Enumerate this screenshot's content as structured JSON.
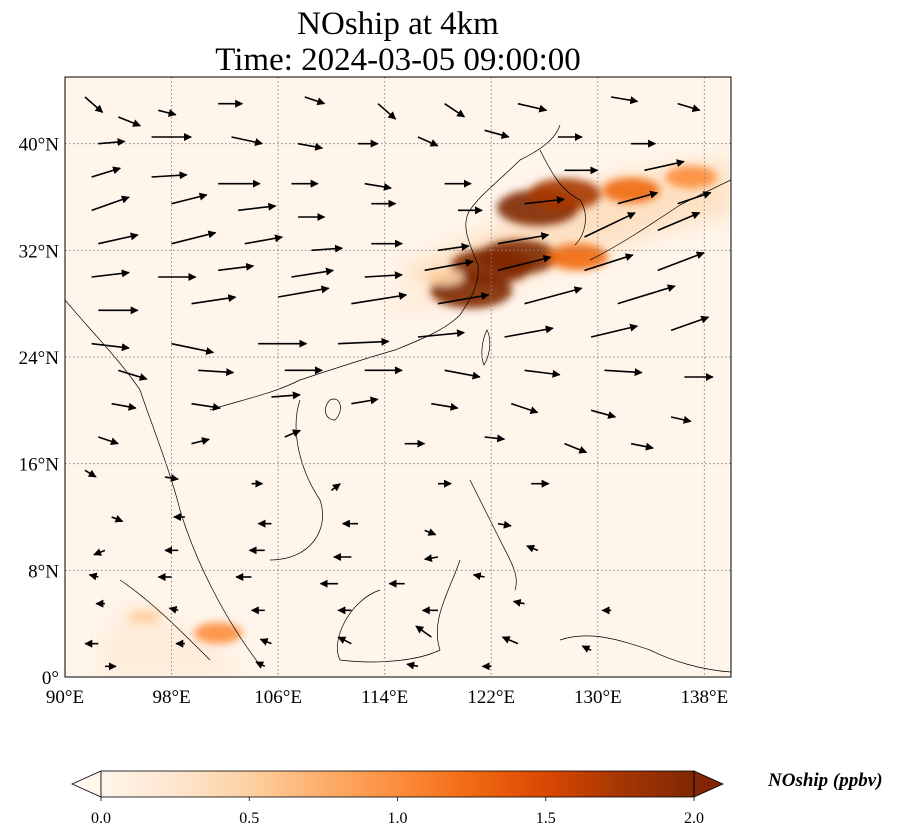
{
  "title": {
    "line1": "NOship at 4km",
    "line2": "Time: 2024-03-05 09:00:00"
  },
  "map": {
    "lon_range": [
      90,
      140
    ],
    "lat_range": [
      0,
      45
    ],
    "lon_ticks": [
      {
        "value": 90,
        "label": "90°E"
      },
      {
        "value": 98,
        "label": "98°E"
      },
      {
        "value": 106,
        "label": "106°E"
      },
      {
        "value": 114,
        "label": "114°E"
      },
      {
        "value": 122,
        "label": "122°E"
      },
      {
        "value": 130,
        "label": "130°E"
      },
      {
        "value": 138,
        "label": "138°E"
      }
    ],
    "lat_ticks": [
      {
        "value": 0,
        "label": "0°"
      },
      {
        "value": 8,
        "label": "8°N"
      },
      {
        "value": 16,
        "label": "16°N"
      },
      {
        "value": 24,
        "label": "24°N"
      },
      {
        "value": 32,
        "label": "32°N"
      },
      {
        "value": 40,
        "label": "40°N"
      }
    ],
    "gridlines": "dotted",
    "background_color": "#fff5eb"
  },
  "colorbar": {
    "label": "NOship (ppbv)",
    "min": 0.0,
    "max": 2.0,
    "extend": "both",
    "colormap": "OrRd",
    "ticks": [
      {
        "value": 0.0,
        "label": "0.0"
      },
      {
        "value": 0.5,
        "label": "0.5"
      },
      {
        "value": 1.0,
        "label": "1.0"
      },
      {
        "value": 1.5,
        "label": "1.5"
      },
      {
        "value": 2.0,
        "label": "2.0"
      }
    ],
    "colors": [
      "#fff5eb",
      "#fee6ce",
      "#fdd0a2",
      "#fdae6b",
      "#fd8d3c",
      "#f16913",
      "#d94801",
      "#a63603",
      "#7f2704"
    ]
  },
  "concentration_hotspots": [
    {
      "lon": 125.5,
      "lat": 35.2,
      "value": 2.0
    },
    {
      "lon": 127.5,
      "lat": 36.2,
      "value": 1.7
    },
    {
      "lon": 124.0,
      "lat": 31.5,
      "value": 1.9
    },
    {
      "lon": 122.0,
      "lat": 30.8,
      "value": 2.0
    },
    {
      "lon": 120.5,
      "lat": 29.0,
      "value": 2.0
    },
    {
      "lon": 128.5,
      "lat": 31.5,
      "value": 1.3
    },
    {
      "lon": 132.5,
      "lat": 36.5,
      "value": 1.2
    },
    {
      "lon": 137.0,
      "lat": 37.5,
      "value": 1.0
    },
    {
      "lon": 118.5,
      "lat": 30.0,
      "value": 0.6
    },
    {
      "lon": 101.5,
      "lat": 3.3,
      "value": 0.9
    },
    {
      "lon": 96.0,
      "lat": 4.5,
      "value": 0.4
    }
  ],
  "wind_arrows": [
    {
      "lon": 91.5,
      "lat": 43.5,
      "u": 1.6,
      "v": -1.4
    },
    {
      "lon": 94.0,
      "lat": 42.0,
      "u": 2.0,
      "v": -0.8
    },
    {
      "lon": 97.0,
      "lat": 42.5,
      "u": 1.6,
      "v": -0.4
    },
    {
      "lon": 101.5,
      "lat": 43.0,
      "u": 2.2,
      "v": 0.0
    },
    {
      "lon": 108.0,
      "lat": 43.5,
      "u": 1.8,
      "v": -0.6
    },
    {
      "lon": 113.5,
      "lat": 43.0,
      "u": 1.6,
      "v": -1.4
    },
    {
      "lon": 118.5,
      "lat": 43.0,
      "u": 1.8,
      "v": -1.2
    },
    {
      "lon": 124.0,
      "lat": 43.0,
      "u": 2.6,
      "v": -0.6
    },
    {
      "lon": 131.0,
      "lat": 43.5,
      "u": 2.4,
      "v": -0.4
    },
    {
      "lon": 136.0,
      "lat": 43.0,
      "u": 2.0,
      "v": -0.6
    },
    {
      "lon": 92.5,
      "lat": 40.0,
      "u": 2.4,
      "v": 0.2
    },
    {
      "lon": 96.5,
      "lat": 40.5,
      "u": 3.6,
      "v": 0.0
    },
    {
      "lon": 102.5,
      "lat": 40.5,
      "u": 2.8,
      "v": -0.6
    },
    {
      "lon": 107.5,
      "lat": 40.0,
      "u": 2.2,
      "v": -0.4
    },
    {
      "lon": 112.0,
      "lat": 40.0,
      "u": 1.8,
      "v": 0.0
    },
    {
      "lon": 116.5,
      "lat": 40.5,
      "u": 1.8,
      "v": -0.8
    },
    {
      "lon": 121.5,
      "lat": 41.0,
      "u": 2.2,
      "v": -0.6
    },
    {
      "lon": 127.0,
      "lat": 40.5,
      "u": 2.2,
      "v": 0.0
    },
    {
      "lon": 132.5,
      "lat": 40.0,
      "u": 2.2,
      "v": 0.0
    },
    {
      "lon": 92.0,
      "lat": 37.5,
      "u": 2.6,
      "v": 0.8
    },
    {
      "lon": 96.5,
      "lat": 37.5,
      "u": 3.2,
      "v": 0.2
    },
    {
      "lon": 101.5,
      "lat": 37.0,
      "u": 3.8,
      "v": 0.0
    },
    {
      "lon": 107.0,
      "lat": 37.0,
      "u": 2.4,
      "v": 0.0
    },
    {
      "lon": 112.5,
      "lat": 37.0,
      "u": 2.4,
      "v": -0.4
    },
    {
      "lon": 118.5,
      "lat": 37.0,
      "u": 2.4,
      "v": 0.0
    },
    {
      "lon": 127.5,
      "lat": 38.0,
      "u": 3.0,
      "v": 0.0
    },
    {
      "lon": 133.5,
      "lat": 38.0,
      "u": 3.6,
      "v": 0.8
    },
    {
      "lon": 92.0,
      "lat": 35.0,
      "u": 3.4,
      "v": 1.2
    },
    {
      "lon": 98.0,
      "lat": 35.5,
      "u": 3.2,
      "v": 0.8
    },
    {
      "lon": 103.0,
      "lat": 35.0,
      "u": 3.4,
      "v": 0.4
    },
    {
      "lon": 107.5,
      "lat": 34.5,
      "u": 2.4,
      "v": 0.0
    },
    {
      "lon": 113.0,
      "lat": 35.5,
      "u": 2.2,
      "v": 0.0
    },
    {
      "lon": 119.5,
      "lat": 35.0,
      "u": 2.2,
      "v": 0.0
    },
    {
      "lon": 124.5,
      "lat": 35.5,
      "u": 3.6,
      "v": 0.4
    },
    {
      "lon": 131.5,
      "lat": 35.5,
      "u": 3.6,
      "v": 1.0
    },
    {
      "lon": 136.0,
      "lat": 35.5,
      "u": 3.0,
      "v": 1.0
    },
    {
      "lon": 92.5,
      "lat": 32.5,
      "u": 3.6,
      "v": 0.8
    },
    {
      "lon": 98.0,
      "lat": 32.5,
      "u": 4.0,
      "v": 1.0
    },
    {
      "lon": 103.5,
      "lat": 32.5,
      "u": 3.4,
      "v": 0.6
    },
    {
      "lon": 108.5,
      "lat": 32.0,
      "u": 2.8,
      "v": 0.2
    },
    {
      "lon": 113.0,
      "lat": 32.5,
      "u": 2.8,
      "v": 0.0
    },
    {
      "lon": 118.0,
      "lat": 32.0,
      "u": 2.8,
      "v": 0.4
    },
    {
      "lon": 122.5,
      "lat": 32.5,
      "u": 4.6,
      "v": 0.8
    },
    {
      "lon": 129.0,
      "lat": 33.0,
      "u": 4.6,
      "v": 2.2
    },
    {
      "lon": 134.5,
      "lat": 33.5,
      "u": 3.8,
      "v": 1.6
    },
    {
      "lon": 92.0,
      "lat": 30.0,
      "u": 3.4,
      "v": 0.4
    },
    {
      "lon": 97.0,
      "lat": 30.0,
      "u": 3.4,
      "v": 0.0
    },
    {
      "lon": 101.5,
      "lat": 30.5,
      "u": 3.2,
      "v": 0.4
    },
    {
      "lon": 107.0,
      "lat": 30.0,
      "u": 3.8,
      "v": 0.6
    },
    {
      "lon": 112.5,
      "lat": 30.0,
      "u": 3.4,
      "v": 0.2
    },
    {
      "lon": 117.0,
      "lat": 30.5,
      "u": 4.4,
      "v": 0.8
    },
    {
      "lon": 122.5,
      "lat": 30.5,
      "u": 4.8,
      "v": 1.2
    },
    {
      "lon": 129.0,
      "lat": 30.5,
      "u": 4.4,
      "v": 1.4
    },
    {
      "lon": 134.5,
      "lat": 30.5,
      "u": 4.2,
      "v": 1.6
    },
    {
      "lon": 92.5,
      "lat": 27.5,
      "u": 3.6,
      "v": 0.0
    },
    {
      "lon": 99.5,
      "lat": 28.0,
      "u": 4.0,
      "v": 0.6
    },
    {
      "lon": 106.0,
      "lat": 28.5,
      "u": 4.6,
      "v": 0.8
    },
    {
      "lon": 111.5,
      "lat": 28.0,
      "u": 5.0,
      "v": 0.8
    },
    {
      "lon": 118.0,
      "lat": 28.0,
      "u": 4.6,
      "v": 0.8
    },
    {
      "lon": 124.5,
      "lat": 28.0,
      "u": 5.2,
      "v": 1.4
    },
    {
      "lon": 131.5,
      "lat": 28.0,
      "u": 5.2,
      "v": 1.6
    },
    {
      "lon": 92.0,
      "lat": 25.0,
      "u": 3.4,
      "v": -0.4
    },
    {
      "lon": 98.0,
      "lat": 25.0,
      "u": 3.8,
      "v": -0.8
    },
    {
      "lon": 104.5,
      "lat": 25.0,
      "u": 4.4,
      "v": 0.0
    },
    {
      "lon": 110.5,
      "lat": 25.0,
      "u": 4.6,
      "v": 0.2
    },
    {
      "lon": 116.5,
      "lat": 25.5,
      "u": 4.2,
      "v": 0.4
    },
    {
      "lon": 123.0,
      "lat": 25.5,
      "u": 4.4,
      "v": 0.8
    },
    {
      "lon": 129.5,
      "lat": 25.5,
      "u": 4.2,
      "v": 1.0
    },
    {
      "lon": 135.5,
      "lat": 26.0,
      "u": 3.4,
      "v": 1.2
    },
    {
      "lon": 94.0,
      "lat": 23.0,
      "u": 2.6,
      "v": -0.8
    },
    {
      "lon": 100.0,
      "lat": 23.0,
      "u": 3.2,
      "v": -0.2
    },
    {
      "lon": 106.5,
      "lat": 23.0,
      "u": 3.4,
      "v": 0.0
    },
    {
      "lon": 112.5,
      "lat": 23.0,
      "u": 3.4,
      "v": 0.0
    },
    {
      "lon": 118.5,
      "lat": 23.0,
      "u": 3.2,
      "v": -0.6
    },
    {
      "lon": 124.5,
      "lat": 23.0,
      "u": 3.2,
      "v": -0.4
    },
    {
      "lon": 130.5,
      "lat": 23.0,
      "u": 3.4,
      "v": -0.2
    },
    {
      "lon": 136.5,
      "lat": 22.5,
      "u": 2.6,
      "v": 0.0
    },
    {
      "lon": 93.5,
      "lat": 20.5,
      "u": 2.2,
      "v": -0.4
    },
    {
      "lon": 99.5,
      "lat": 20.5,
      "u": 2.6,
      "v": -0.4
    },
    {
      "lon": 105.5,
      "lat": 21.0,
      "u": 2.6,
      "v": 0.2
    },
    {
      "lon": 111.5,
      "lat": 20.5,
      "u": 2.4,
      "v": 0.4
    },
    {
      "lon": 117.5,
      "lat": 20.5,
      "u": 2.4,
      "v": -0.4
    },
    {
      "lon": 123.5,
      "lat": 20.5,
      "u": 2.4,
      "v": -0.8
    },
    {
      "lon": 129.5,
      "lat": 20.0,
      "u": 2.2,
      "v": -0.6
    },
    {
      "lon": 135.5,
      "lat": 19.5,
      "u": 1.8,
      "v": -0.4
    },
    {
      "lon": 92.5,
      "lat": 18.0,
      "u": 1.8,
      "v": -0.6
    },
    {
      "lon": 99.5,
      "lat": 17.5,
      "u": 1.6,
      "v": 0.4
    },
    {
      "lon": 106.5,
      "lat": 18.0,
      "u": 1.4,
      "v": 0.6
    },
    {
      "lon": 115.5,
      "lat": 17.5,
      "u": 1.8,
      "v": 0.0
    },
    {
      "lon": 121.5,
      "lat": 18.0,
      "u": 1.8,
      "v": -0.2
    },
    {
      "lon": 127.5,
      "lat": 17.5,
      "u": 2.0,
      "v": -0.8
    },
    {
      "lon": 132.5,
      "lat": 17.5,
      "u": 2.0,
      "v": -0.4
    },
    {
      "lon": 91.5,
      "lat": 15.5,
      "u": 1.0,
      "v": -0.6
    },
    {
      "lon": 97.5,
      "lat": 15.0,
      "u": 1.2,
      "v": -0.2
    },
    {
      "lon": 104.0,
      "lat": 14.5,
      "u": 1.0,
      "v": 0.0
    },
    {
      "lon": 110.0,
      "lat": 14.0,
      "u": 0.8,
      "v": 0.6
    },
    {
      "lon": 118.0,
      "lat": 14.5,
      "u": 1.2,
      "v": 0.0
    },
    {
      "lon": 125.0,
      "lat": 14.5,
      "u": 1.6,
      "v": 0.0
    },
    {
      "lon": 93.5,
      "lat": 12.0,
      "u": 1.0,
      "v": -0.4
    },
    {
      "lon": 99.0,
      "lat": 12.0,
      "u": -1.0,
      "v": 0.0
    },
    {
      "lon": 105.5,
      "lat": 11.5,
      "u": -1.2,
      "v": 0.0
    },
    {
      "lon": 112.0,
      "lat": 11.5,
      "u": -1.4,
      "v": 0.0
    },
    {
      "lon": 117.0,
      "lat": 11.0,
      "u": 1.0,
      "v": -0.4
    },
    {
      "lon": 122.5,
      "lat": 11.5,
      "u": 1.2,
      "v": -0.2
    },
    {
      "lon": 93.0,
      "lat": 9.5,
      "u": -1.0,
      "v": -0.4
    },
    {
      "lon": 98.5,
      "lat": 9.5,
      "u": -1.2,
      "v": 0.0
    },
    {
      "lon": 105.0,
      "lat": 9.5,
      "u": -1.4,
      "v": 0.0
    },
    {
      "lon": 111.5,
      "lat": 9.0,
      "u": -1.6,
      "v": 0.0
    },
    {
      "lon": 118.0,
      "lat": 9.0,
      "u": -1.2,
      "v": -0.2
    },
    {
      "lon": 125.5,
      "lat": 9.5,
      "u": -1.0,
      "v": 0.4
    },
    {
      "lon": 92.5,
      "lat": 7.5,
      "u": -0.8,
      "v": 0.2
    },
    {
      "lon": 98.0,
      "lat": 7.5,
      "u": -1.2,
      "v": 0.0
    },
    {
      "lon": 104.0,
      "lat": 7.5,
      "u": -1.4,
      "v": 0.0
    },
    {
      "lon": 110.5,
      "lat": 7.0,
      "u": -1.6,
      "v": 0.0
    },
    {
      "lon": 115.5,
      "lat": 7.0,
      "u": -1.4,
      "v": 0.0
    },
    {
      "lon": 121.5,
      "lat": 7.5,
      "u": -1.0,
      "v": 0.2
    },
    {
      "lon": 93.0,
      "lat": 5.5,
      "u": -0.8,
      "v": 0.0
    },
    {
      "lon": 98.5,
      "lat": 5.0,
      "u": -0.8,
      "v": 0.2
    },
    {
      "lon": 105.0,
      "lat": 5.0,
      "u": -1.2,
      "v": 0.0
    },
    {
      "lon": 111.5,
      "lat": 5.0,
      "u": -1.2,
      "v": 0.0
    },
    {
      "lon": 118.0,
      "lat": 5.0,
      "u": -1.4,
      "v": 0.0
    },
    {
      "lon": 124.5,
      "lat": 5.5,
      "u": -1.0,
      "v": 0.2
    },
    {
      "lon": 131.0,
      "lat": 5.0,
      "u": -0.8,
      "v": 0.0
    },
    {
      "lon": 92.5,
      "lat": 2.5,
      "u": -1.2,
      "v": 0.0
    },
    {
      "lon": 99.0,
      "lat": 2.5,
      "u": -0.8,
      "v": 0.0
    },
    {
      "lon": 105.5,
      "lat": 2.5,
      "u": -1.0,
      "v": 0.4
    },
    {
      "lon": 111.5,
      "lat": 2.5,
      "u": -1.2,
      "v": 0.6
    },
    {
      "lon": 117.5,
      "lat": 3.0,
      "u": -1.4,
      "v": 1.0
    },
    {
      "lon": 124.0,
      "lat": 2.5,
      "u": -1.4,
      "v": 0.6
    },
    {
      "lon": 129.5,
      "lat": 2.0,
      "u": -0.8,
      "v": 0.4
    },
    {
      "lon": 93.0,
      "lat": 0.8,
      "u": 1.0,
      "v": 0.0
    },
    {
      "lon": 105.0,
      "lat": 0.8,
      "u": -0.8,
      "v": 0.4
    },
    {
      "lon": 116.5,
      "lat": 0.8,
      "u": -1.0,
      "v": 0.2
    },
    {
      "lon": 122.0,
      "lat": 0.8,
      "u": -0.8,
      "v": 0.0
    }
  ]
}
